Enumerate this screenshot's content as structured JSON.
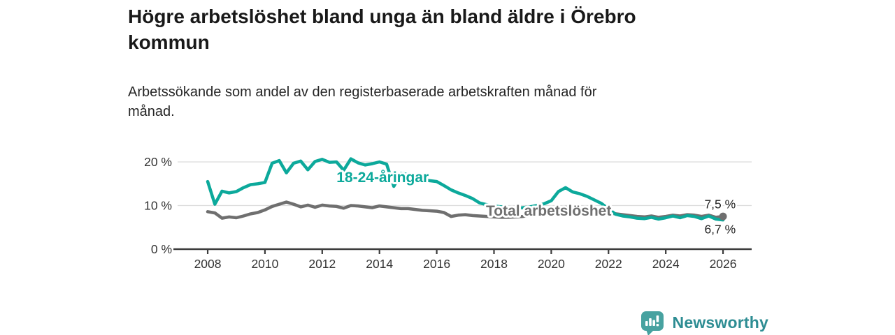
{
  "header": {
    "title": "Högre arbetslöshet bland unga än bland äldre i Örebro kommun",
    "subtitle": "Arbetssökande som andel av den registerbaserade arbetskraften månad för månad."
  },
  "footer": {
    "brand": "Newsworthy"
  },
  "colors": {
    "young": "#0ca99b",
    "total": "#6f6f6f",
    "grid": "#dcdcdc",
    "axis": "#3c3c3c",
    "tick_text": "#333333",
    "end_label_text": "#222222",
    "logo_icon": "#47a2a0",
    "logo_text": "#2e8d93",
    "background": "#ffffff"
  },
  "chart_data": {
    "type": "line",
    "title": "Högre arbetslöshet bland unga än bland äldre i Örebro kommun",
    "subtitle": "Arbetssökande som andel av den registerbaserade arbetskraften månad för månad.",
    "xlabel": "",
    "ylabel": "",
    "ylim": [
      0,
      20
    ],
    "xlim": [
      2006.9,
      2027.0
    ],
    "grid": "horizontal",
    "legend": "inline-labels",
    "x": {
      "start": 2008.0,
      "step_years": 0.25
    },
    "xticks": [
      2008,
      2010,
      2012,
      2014,
      2016,
      2018,
      2020,
      2022,
      2024,
      2026
    ],
    "yticks": [
      {
        "value": 0,
        "label": "0 %"
      },
      {
        "value": 10,
        "label": "10 %"
      },
      {
        "value": 20,
        "label": "20 %"
      }
    ],
    "series": [
      {
        "name": "18-24-åringar",
        "color_key": "young",
        "end_dot": false,
        "values": [
          15.5,
          10.3,
          13.3,
          12.9,
          13.2,
          14.1,
          14.8,
          15.0,
          15.3,
          19.7,
          20.3,
          17.5,
          19.7,
          20.2,
          18.2,
          20.1,
          20.6,
          19.9,
          20.0,
          18.1,
          20.7,
          19.8,
          19.3,
          19.6,
          20.0,
          19.5,
          14.4,
          17.4,
          17.1,
          16.5,
          15.9,
          15.7,
          15.5,
          14.6,
          13.6,
          12.9,
          12.3,
          11.6,
          10.6,
          10.2,
          9.9,
          9.7,
          9.5,
          9.4,
          9.5,
          9.7,
          10.0,
          10.4,
          11.1,
          13.2,
          14.1,
          13.1,
          12.7,
          12.1,
          11.3,
          10.5,
          9.2,
          8.0,
          7.6,
          7.4,
          7.1,
          7.0,
          7.3,
          6.9,
          7.2,
          7.6,
          7.2,
          7.7,
          7.5,
          7.0,
          7.6,
          6.9,
          6.7
        ]
      },
      {
        "name": "Total arbetslöshet",
        "color_key": "total",
        "end_dot": true,
        "values": [
          8.6,
          8.3,
          7.1,
          7.4,
          7.2,
          7.6,
          8.1,
          8.4,
          9.0,
          9.8,
          10.3,
          10.8,
          10.3,
          9.7,
          10.1,
          9.6,
          10.1,
          9.9,
          9.8,
          9.4,
          10.0,
          9.9,
          9.7,
          9.5,
          9.9,
          9.7,
          9.5,
          9.3,
          9.3,
          9.1,
          8.9,
          8.8,
          8.7,
          8.4,
          7.5,
          7.8,
          7.9,
          7.7,
          7.6,
          7.5,
          7.4,
          7.3,
          7.3,
          7.4,
          7.5,
          7.7,
          7.9,
          8.2,
          8.7,
          9.4,
          9.6,
          9.4,
          9.2,
          8.9,
          8.7,
          8.5,
          8.3,
          8.1,
          7.9,
          7.7,
          7.5,
          7.4,
          7.6,
          7.3,
          7.5,
          7.8,
          7.6,
          7.9,
          7.8,
          7.5,
          7.8,
          7.3,
          7.5
        ]
      }
    ],
    "series_labels": [
      {
        "text": "18-24-åringar",
        "x": 2012.5,
        "y": 16.5,
        "color_key": "young"
      },
      {
        "text": "Total arbetslöshet",
        "x": 2017.72,
        "y": 8.8,
        "color_key": "total"
      }
    ],
    "end_labels": [
      {
        "text": "7,5 %",
        "x": 2025.35,
        "y": 10.35,
        "series": "Total arbetslöshet"
      },
      {
        "text": "6,7 %",
        "x": 2025.35,
        "y": 4.6,
        "series": "18-24-åringar"
      }
    ]
  }
}
